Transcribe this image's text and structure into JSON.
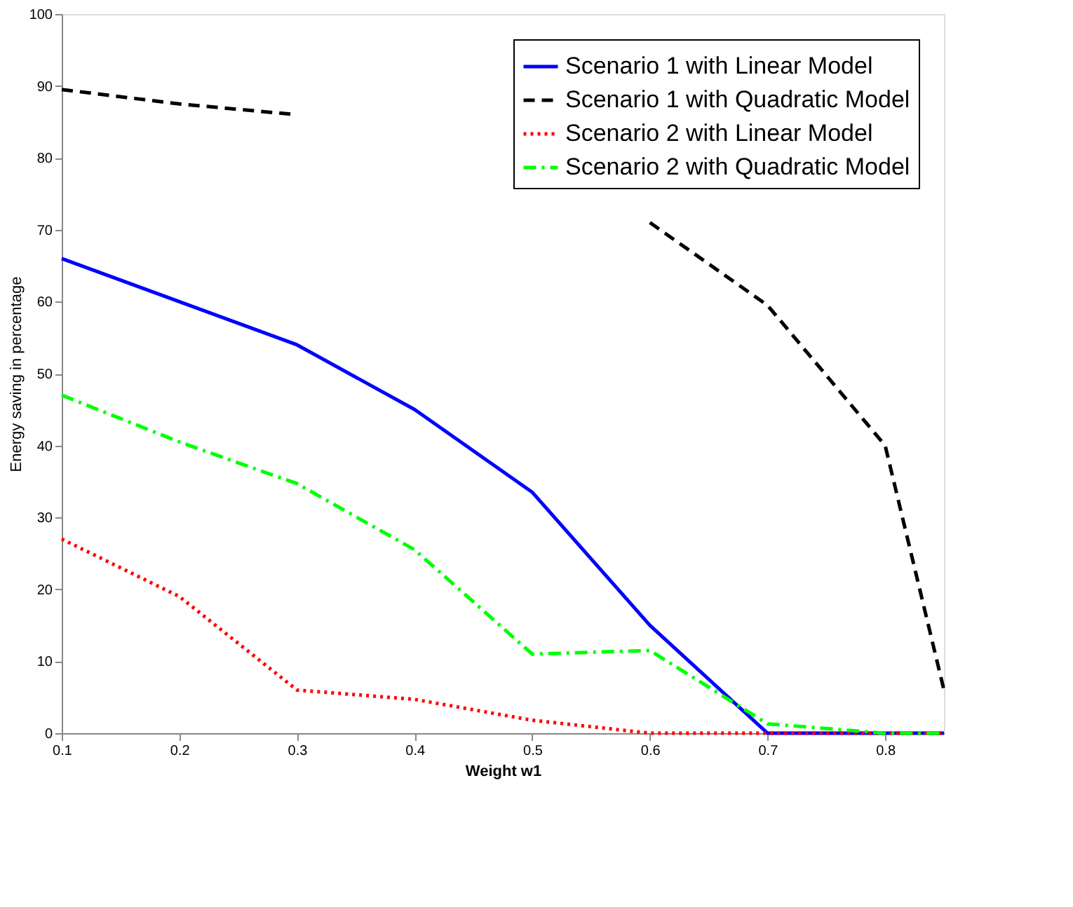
{
  "chart_data": {
    "type": "line",
    "xlabel": "Weight w1",
    "ylabel": "Energy saving in percentage",
    "x": [
      0.1,
      0.2,
      0.3,
      0.4,
      0.5,
      0.6,
      0.7,
      0.8,
      0.85
    ],
    "series": [
      {
        "name": "Scenario 1 with Linear Model",
        "color": "#0000ff",
        "line_style": "solid",
        "values": [
          66,
          60,
          54,
          45,
          33.5,
          15,
          0,
          0,
          0
        ]
      },
      {
        "name": "Scenario 1 with Quadratic Model",
        "color": "#000000",
        "line_style": "dashed",
        "values": [
          89.5,
          87.5,
          86,
          null,
          null,
          71,
          59.5,
          40,
          6
        ]
      },
      {
        "name": "Scenario 2 with Linear Model",
        "color": "#ff0000",
        "line_style": "dotted",
        "values": [
          27,
          19,
          6,
          4.7,
          1.8,
          0,
          0,
          0,
          0
        ]
      },
      {
        "name": "Scenario 2 with Quadratic Model",
        "color": "#00ff00",
        "line_style": "dashdot",
        "values": [
          47,
          40.5,
          34.7,
          25.5,
          11,
          11.5,
          1.3,
          0,
          0
        ]
      }
    ],
    "xlim": [
      0.1,
      0.85
    ],
    "xticks": [
      0.1,
      0.2,
      0.3,
      0.4,
      0.5,
      0.6,
      0.7,
      0.8
    ],
    "ylim": [
      0,
      100
    ],
    "yticks": [
      0,
      10,
      20,
      30,
      40,
      50,
      60,
      70,
      80,
      90,
      100
    ],
    "grid": false,
    "legend": "top right",
    "marker": "none"
  }
}
